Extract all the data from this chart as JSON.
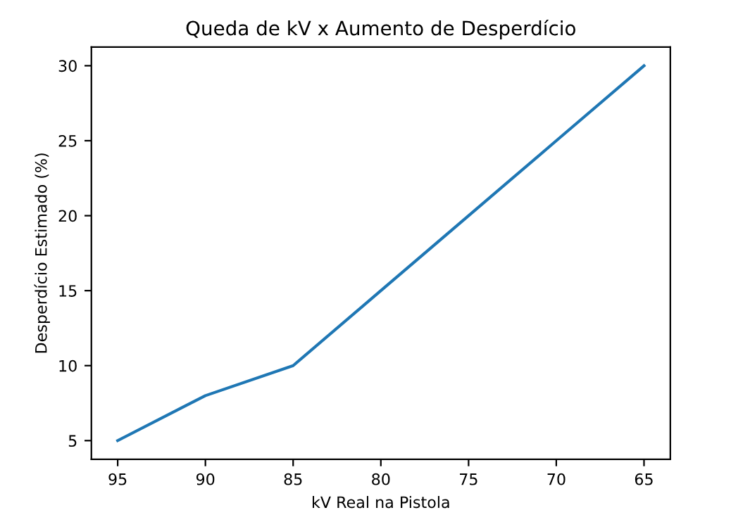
{
  "chart_data": {
    "type": "line",
    "title": "Queda de kV x Aumento de Desperdício",
    "xlabel": "kV Real na Pistola",
    "ylabel": "Desperdício Estimado (%)",
    "x": [
      95,
      90,
      85,
      80,
      75,
      70,
      65
    ],
    "series": [
      {
        "color": "#1f77b4",
        "values": [
          5,
          8,
          10,
          15,
          20,
          25,
          30
        ]
      }
    ],
    "xlim": [
      96.5,
      63.5
    ],
    "xticks": [
      95,
      90,
      85,
      80,
      75,
      70,
      65
    ],
    "ylim": [
      3.75,
      31.25
    ],
    "yticks": [
      5,
      10,
      15,
      20,
      25,
      30
    ],
    "grid": false,
    "legend": false,
    "marker": "none",
    "line_style": "solid"
  }
}
